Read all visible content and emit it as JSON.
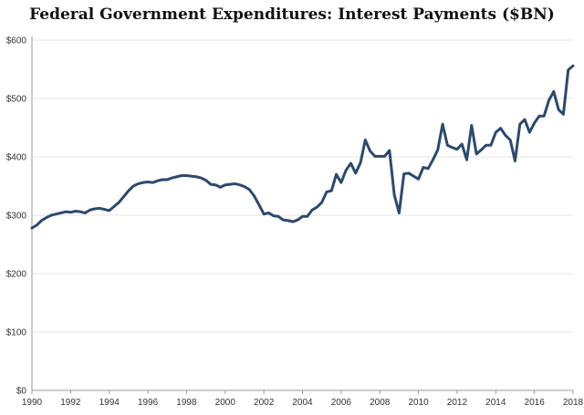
{
  "chart_data": {
    "type": "line",
    "title": "Federal Government Expenditures: Interest Payments ($BN)",
    "xlabel": "",
    "ylabel": "",
    "xlim": [
      1990,
      2018
    ],
    "ylim": [
      0,
      600
    ],
    "grid": "horizontal",
    "line_color": "#2c4a6e",
    "x_ticks": [
      1990,
      1992,
      1994,
      1996,
      1998,
      2000,
      2002,
      2004,
      2006,
      2008,
      2010,
      2012,
      2014,
      2016,
      2018
    ],
    "x_tick_labels": [
      "1990",
      "1992",
      "1994",
      "1996",
      "1998",
      "2000",
      "2002",
      "2004",
      "2006",
      "2008",
      "2010",
      "2012",
      "2014",
      "2016",
      "2018"
    ],
    "y_ticks": [
      0,
      100,
      200,
      300,
      400,
      500,
      600
    ],
    "y_tick_labels": [
      "$0",
      "$100",
      "$200",
      "$300",
      "$400",
      "$500",
      "$600"
    ],
    "series": [
      {
        "x": [
          1990.0,
          1990.25,
          1990.5,
          1990.75,
          1991.0,
          1991.25,
          1991.5,
          1991.75,
          1992.0,
          1992.25,
          1992.5,
          1992.75,
          1993.0,
          1993.25,
          1993.5,
          1993.75,
          1994.0,
          1994.25,
          1994.5,
          1994.75,
          1995.0,
          1995.25,
          1995.5,
          1995.75,
          1996.0,
          1996.25,
          1996.5,
          1996.75,
          1997.0,
          1997.25,
          1997.5,
          1997.75,
          1998.0,
          1998.25,
          1998.5,
          1998.75,
          1999.0,
          1999.25,
          1999.5,
          1999.75,
          2000.0,
          2000.25,
          2000.5,
          2000.75,
          2001.0,
          2001.25,
          2001.5,
          2001.75,
          2002.0,
          2002.25,
          2002.5,
          2002.75,
          2003.0,
          2003.25,
          2003.5,
          2003.75,
          2004.0,
          2004.25,
          2004.5,
          2004.75,
          2005.0,
          2005.25,
          2005.5,
          2005.75,
          2006.0,
          2006.25,
          2006.5,
          2006.75,
          2007.0,
          2007.25,
          2007.5,
          2007.75,
          2008.0,
          2008.25,
          2008.5,
          2008.75,
          2009.0,
          2009.25,
          2009.5,
          2009.75,
          2010.0,
          2010.25,
          2010.5,
          2010.75,
          2011.0,
          2011.25,
          2011.5,
          2011.75,
          2012.0,
          2012.25,
          2012.5,
          2012.75,
          2013.0,
          2013.25,
          2013.5,
          2013.75,
          2014.0,
          2014.25,
          2014.5,
          2014.75,
          2015.0,
          2015.25,
          2015.5,
          2015.75,
          2016.0,
          2016.25,
          2016.5,
          2016.75,
          2017.0,
          2017.25,
          2017.5,
          2017.75,
          2018.0
        ],
        "y": [
          278,
          283,
          291,
          296,
          300,
          302,
          304,
          306,
          305,
          307,
          306,
          304,
          309,
          311,
          312,
          310,
          308,
          315,
          322,
          332,
          342,
          350,
          354,
          356,
          357,
          356,
          359,
          361,
          361,
          364,
          366,
          368,
          368,
          367,
          366,
          364,
          360,
          353,
          352,
          348,
          352,
          353,
          354,
          352,
          349,
          344,
          333,
          318,
          302,
          304,
          299,
          298,
          292,
          291,
          289,
          292,
          298,
          298,
          309,
          314,
          322,
          340,
          342,
          370,
          356,
          377,
          389,
          372,
          390,
          429,
          410,
          401,
          401,
          401,
          411,
          335,
          304,
          371,
          372,
          367,
          362,
          382,
          380,
          395,
          412,
          456,
          420,
          416,
          413,
          422,
          395,
          454,
          405,
          412,
          420,
          420,
          442,
          449,
          437,
          429,
          393,
          456,
          464,
          442,
          458,
          470,
          470,
          497,
          512,
          481,
          473,
          549,
          556
        ]
      }
    ]
  }
}
